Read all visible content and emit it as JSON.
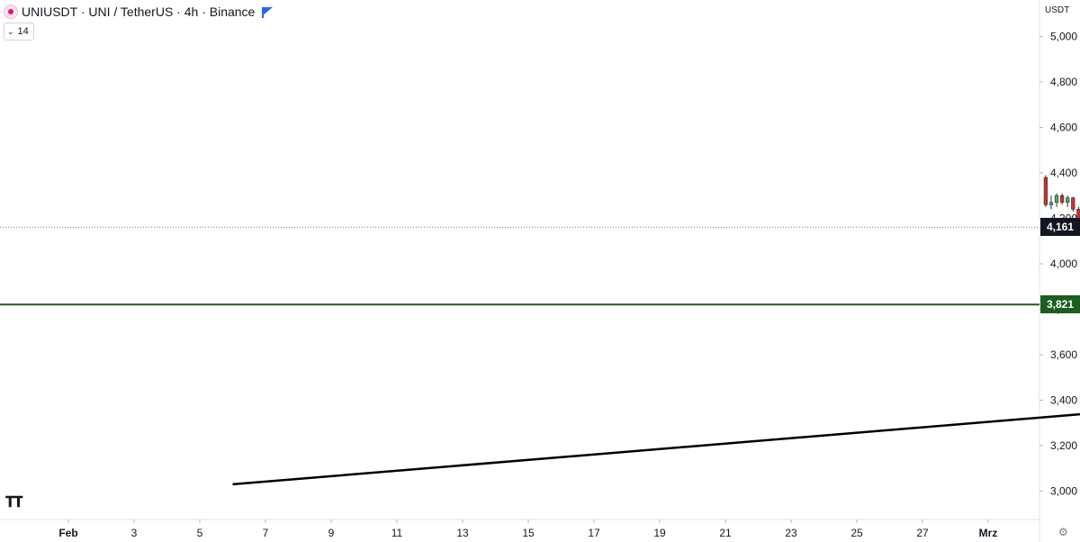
{
  "header": {
    "title": "UNIUSDT · UNI / TetherUS · 4h · Binance",
    "indicator_value": "14"
  },
  "price_axis": {
    "currency": "USDT",
    "current_price_label": "4,161",
    "resistance_label": "3,821"
  },
  "colors": {
    "up": "#26a69a",
    "up_body": "#4caf50",
    "down": "#d32f2f",
    "support_line": "#1b5e20",
    "trend_line": "#000000",
    "price_tag": "#131722"
  },
  "icons": [
    "uniswap-icon",
    "flag-icon",
    "chevron-down-icon",
    "tradingview-logo",
    "gear-icon"
  ],
  "chart_data": {
    "type": "candlestick",
    "title": "UNIUSDT · UNI / TetherUS · 4h · Binance",
    "ylim": [
      2950,
      5050
    ],
    "y_ticks": [
      3000,
      3200,
      3400,
      3600,
      3800,
      4000,
      4200,
      4400,
      4600,
      4800,
      5000
    ],
    "y_tick_labels": [
      "3,000",
      "3,200",
      "3,400",
      "3,600",
      "3,800",
      "4,000",
      "4,200",
      "4,400",
      "4,600",
      "4,800",
      "5,000"
    ],
    "x_tick_labels": [
      "Feb",
      "3",
      "5",
      "7",
      "9",
      "11",
      "13",
      "15",
      "17",
      "19",
      "21",
      "23",
      "25",
      "27",
      "Mrz"
    ],
    "x_tick_days": [
      1,
      3,
      5,
      7,
      9,
      11,
      13,
      15,
      17,
      19,
      21,
      23,
      25,
      27,
      29
    ],
    "start_day": 30.75,
    "bar_interval_days": 0.16667,
    "horizontal_lines": [
      {
        "type": "current_price",
        "value": 4161
      },
      {
        "type": "support_resistance",
        "value": 3821
      }
    ],
    "trend_lines": [
      {
        "start_day": 6.0,
        "start_value": 3030,
        "end_day": 32.8,
        "end_value": 3350
      }
    ],
    "ohlc": [
      [
        4380,
        4390,
        4250,
        4260
      ],
      [
        4260,
        4300,
        4240,
        4270
      ],
      [
        4270,
        4310,
        4250,
        4300
      ],
      [
        4300,
        4310,
        4260,
        4270
      ],
      [
        4270,
        4300,
        4250,
        4290
      ],
      [
        4290,
        4295,
        4230,
        4240
      ],
      [
        4240,
        4250,
        4160,
        4170
      ],
      [
        4170,
        4180,
        4010,
        4020
      ],
      [
        4020,
        4030,
        3820,
        3830
      ],
      [
        3830,
        3990,
        3820,
        3980
      ],
      [
        3980,
        4000,
        3950,
        3960
      ],
      [
        3960,
        3990,
        3920,
        3930
      ],
      [
        3930,
        3940,
        3820,
        3830
      ],
      [
        3830,
        3860,
        3820,
        3850
      ],
      [
        3850,
        3860,
        3830,
        3840
      ],
      [
        3840,
        3870,
        3830,
        3860
      ],
      [
        3860,
        3920,
        3850,
        3910
      ],
      [
        3910,
        3960,
        3900,
        3950
      ],
      [
        3950,
        3960,
        3910,
        3920
      ],
      [
        3920,
        3940,
        3900,
        3910
      ],
      [
        3910,
        3930,
        3890,
        3920
      ],
      [
        3920,
        3950,
        3880,
        3890
      ],
      [
        3890,
        3960,
        3880,
        3950
      ],
      [
        3950,
        3960,
        3860,
        3870
      ],
      [
        3870,
        3960,
        3860,
        3950
      ],
      [
        3950,
        3960,
        3880,
        3890
      ],
      [
        3890,
        3900,
        3810,
        3820
      ],
      [
        3820,
        3860,
        3720,
        3730
      ],
      [
        3730,
        3840,
        3720,
        3830
      ],
      [
        3830,
        3840,
        3760,
        3770
      ],
      [
        3770,
        3780,
        3680,
        3690
      ],
      [
        3690,
        3700,
        3600,
        3610
      ],
      [
        3610,
        3620,
        3360,
        3370
      ],
      [
        3370,
        3380,
        3270,
        3280
      ],
      [
        3280,
        3290,
        3140,
        3150
      ],
      [
        3150,
        3160,
        3060,
        3070
      ],
      [
        3070,
        3200,
        3060,
        3190
      ],
      [
        3190,
        3360,
        3180,
        3350
      ],
      [
        3350,
        3560,
        3340,
        3550
      ],
      [
        3550,
        3570,
        3490,
        3500
      ],
      [
        3500,
        3570,
        3490,
        3560
      ],
      [
        3560,
        3580,
        3550,
        3570
      ],
      [
        3570,
        3580,
        3450,
        3460
      ],
      [
        3460,
        3500,
        3450,
        3490
      ],
      [
        3490,
        3560,
        3480,
        3550
      ],
      [
        3550,
        3570,
        3520,
        3530
      ],
      [
        3530,
        3540,
        3480,
        3490
      ],
      [
        3490,
        3550,
        3480,
        3540
      ],
      [
        3540,
        3550,
        3500,
        3510
      ],
      [
        3510,
        3530,
        3490,
        3520
      ],
      [
        3520,
        3530,
        3480,
        3490
      ],
      [
        3490,
        3500,
        3450,
        3460
      ],
      [
        3460,
        3480,
        3330,
        3340
      ],
      [
        3340,
        3420,
        3330,
        3410
      ],
      [
        3410,
        3520,
        3400,
        3510
      ],
      [
        3510,
        3520,
        3450,
        3460
      ],
      [
        3460,
        3470,
        3360,
        3370
      ],
      [
        3370,
        3380,
        3340,
        3350
      ],
      [
        3350,
        3370,
        3340,
        3360
      ],
      [
        3360,
        3370,
        3340,
        3350
      ],
      [
        3350,
        3360,
        3340,
        3355
      ],
      [
        3355,
        3360,
        3330,
        3340
      ],
      [
        3340,
        3350,
        3250,
        3260
      ],
      [
        3260,
        3280,
        3240,
        3270
      ],
      [
        3270,
        3820,
        3260,
        3810
      ],
      [
        3810,
        3820,
        3380,
        3390
      ],
      [
        3390,
        3490,
        3380,
        3480
      ],
      [
        3480,
        3490,
        3400,
        3410
      ],
      [
        3410,
        3420,
        3340,
        3350
      ],
      [
        3350,
        3360,
        3220,
        3230
      ],
      [
        3230,
        3260,
        3210,
        3250
      ],
      [
        3250,
        3290,
        3240,
        3280
      ],
      [
        3280,
        3320,
        3270,
        3310
      ],
      [
        3310,
        3360,
        3300,
        3350
      ],
      [
        3350,
        3410,
        3340,
        3400
      ],
      [
        3400,
        3420,
        3390,
        3410
      ],
      [
        3410,
        3420,
        3390,
        3400
      ],
      [
        3400,
        3410,
        3380,
        3390
      ],
      [
        3390,
        3500,
        3380,
        3490
      ],
      [
        3490,
        3580,
        3480,
        3570
      ],
      [
        3570,
        3660,
        3560,
        3650
      ],
      [
        3650,
        3660,
        3610,
        3620
      ],
      [
        3620,
        3630,
        3600,
        3610
      ],
      [
        3610,
        3620,
        3580,
        3590
      ],
      [
        3590,
        3600,
        3490,
        3500
      ],
      [
        3500,
        3510,
        3420,
        3430
      ],
      [
        3430,
        3500,
        3420,
        3490
      ],
      [
        3490,
        3530,
        3480,
        3520
      ],
      [
        3520,
        3540,
        3490,
        3500
      ],
      [
        3500,
        3520,
        3440,
        3450
      ],
      [
        3450,
        3530,
        3440,
        3520
      ],
      [
        3520,
        3600,
        3510,
        3590
      ],
      [
        3590,
        3600,
        3560,
        3570
      ],
      [
        3570,
        3580,
        3520,
        3530
      ],
      [
        3530,
        3540,
        3500,
        3510
      ],
      [
        3510,
        3530,
        3490,
        3520
      ],
      [
        3520,
        3540,
        3510,
        3530
      ],
      [
        3530,
        3550,
        3520,
        3540
      ],
      [
        3540,
        3570,
        3530,
        3560
      ],
      [
        3560,
        3570,
        3540,
        3550
      ],
      [
        3550,
        3560,
        3530,
        3540
      ],
      [
        3540,
        3550,
        3410,
        3420
      ],
      [
        3420,
        3430,
        3400,
        3410
      ],
      [
        3410,
        3430,
        3400,
        3420
      ],
      [
        3420,
        3430,
        3380,
        3390
      ],
      [
        3390,
        3400,
        3340,
        3350
      ],
      [
        3350,
        3390,
        3340,
        3380
      ],
      [
        3380,
        3400,
        3370,
        3390
      ],
      [
        3390,
        3410,
        3380,
        3400
      ],
      [
        3400,
        3410,
        3390,
        3405
      ],
      [
        3405,
        3420,
        3395,
        3410
      ],
      [
        3410,
        3450,
        3400,
        3440
      ],
      [
        3440,
        3490,
        3430,
        3480
      ],
      [
        3480,
        3520,
        3470,
        3510
      ],
      [
        3510,
        3570,
        3500,
        3560
      ],
      [
        3560,
        3640,
        3550,
        3630
      ],
      [
        3630,
        3640,
        3610,
        3620
      ],
      [
        3620,
        3630,
        3590,
        3600
      ],
      [
        3600,
        3610,
        3570,
        3580
      ],
      [
        3580,
        3590,
        3550,
        3560
      ],
      [
        3560,
        3570,
        3490,
        3500
      ],
      [
        3500,
        3510,
        3470,
        3480
      ],
      [
        3480,
        3490,
        3460,
        3470
      ],
      [
        3470,
        3480,
        3300,
        3310
      ],
      [
        3310,
        3350,
        3300,
        3340
      ],
      [
        3340,
        3420,
        3330,
        3410
      ],
      [
        3410,
        3420,
        3370,
        3380
      ],
      [
        3380,
        3390,
        3320,
        3330
      ],
      [
        3330,
        3350,
        3310,
        3340
      ],
      [
        3340,
        3350,
        3320,
        3325
      ],
      [
        3325,
        3340,
        3310,
        3330
      ],
      [
        3330,
        3370,
        3320,
        3360
      ],
      [
        3360,
        3370,
        3330,
        3340
      ],
      [
        3340,
        3350,
        3330,
        3345
      ],
      [
        3345,
        3480,
        3340,
        3470
      ],
      [
        3470,
        3500,
        3460,
        3490
      ],
      [
        3490,
        3560,
        3480,
        3550
      ],
      [
        3550,
        3940,
        3540,
        3930
      ],
      [
        3930,
        4100,
        3920,
        4090
      ],
      [
        4090,
        4170,
        4080,
        4161
      ]
    ]
  }
}
